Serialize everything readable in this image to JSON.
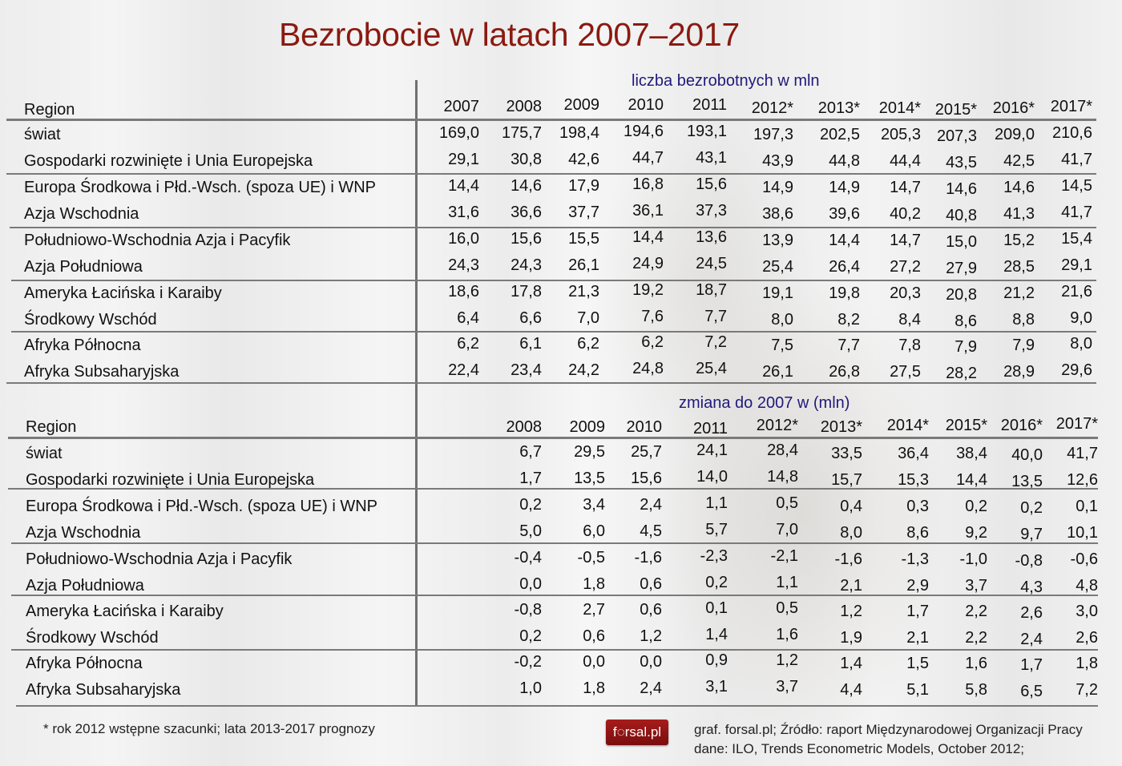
{
  "title": "Bezrobocie w latach 2007–2017",
  "table1": {
    "subtitle": "liczba bezrobotnych w mln",
    "header_region": "Region",
    "years": [
      "2007",
      "2008",
      "2009",
      "2010",
      "2011",
      "2012*",
      "2013*",
      "2014*",
      "2015*",
      "2016*",
      "2017*"
    ],
    "rows": [
      {
        "region": "świat",
        "values": [
          "169,0",
          "175,7",
          "198,4",
          "194,6",
          "193,1",
          "197,3",
          "202,5",
          "205,3",
          "207,3",
          "209,0",
          "210,6"
        ]
      },
      {
        "region": "Gospodarki rozwinięte i Unia Europejska",
        "values": [
          "29,1",
          "30,8",
          "42,6",
          "44,7",
          "43,1",
          "43,9",
          "44,8",
          "44,4",
          "43,5",
          "42,5",
          "41,7"
        ]
      },
      {
        "region": "Europa Środkowa i Płd.-Wsch. (spoza UE) i WNP",
        "values": [
          "14,4",
          "14,6",
          "17,9",
          "16,8",
          "15,6",
          "14,9",
          "14,9",
          "14,7",
          "14,6",
          "14,6",
          "14,5"
        ]
      },
      {
        "region": "Azja Wschodnia",
        "values": [
          "31,6",
          "36,6",
          "37,7",
          "36,1",
          "37,3",
          "38,6",
          "39,6",
          "40,2",
          "40,8",
          "41,3",
          "41,7"
        ]
      },
      {
        "region": "Południowo-Wschodnia Azja i Pacyfik",
        "values": [
          "16,0",
          "15,6",
          "15,5",
          "14,4",
          "13,6",
          "13,9",
          "14,4",
          "14,7",
          "15,0",
          "15,2",
          "15,4"
        ]
      },
      {
        "region": "Azja Południowa",
        "values": [
          "24,3",
          "24,3",
          "26,1",
          "24,9",
          "24,5",
          "25,4",
          "26,4",
          "27,2",
          "27,9",
          "28,5",
          "29,1"
        ]
      },
      {
        "region": "Ameryka Łacińska i Karaiby",
        "values": [
          "18,6",
          "17,8",
          "21,3",
          "19,2",
          "18,7",
          "19,1",
          "19,8",
          "20,3",
          "20,8",
          "21,2",
          "21,6"
        ]
      },
      {
        "region": "Środkowy Wschód",
        "values": [
          "6,4",
          "6,6",
          "7,0",
          "7,6",
          "7,7",
          "8,0",
          "8,2",
          "8,4",
          "8,6",
          "8,8",
          "9,0"
        ]
      },
      {
        "region": "Afryka Północna",
        "values": [
          "6,2",
          "6,1",
          "6,2",
          "6,2",
          "7,2",
          "7,5",
          "7,7",
          "7,8",
          "7,9",
          "7,9",
          "8,0"
        ]
      },
      {
        "region": "Afryka Subsaharyjska",
        "values": [
          "22,4",
          "23,4",
          "24,2",
          "24,8",
          "25,4",
          "26,1",
          "26,8",
          "27,5",
          "28,2",
          "28,9",
          "29,6"
        ]
      }
    ]
  },
  "table2": {
    "subtitle": "zmiana do 2007 w (mln)",
    "header_region": "Region",
    "years": [
      "2008",
      "2009",
      "2010",
      "2011",
      "2012*",
      "2013*",
      "2014*",
      "2015*",
      "2016*",
      "2017*"
    ],
    "rows": [
      {
        "region": "świat",
        "values": [
          "6,7",
          "29,5",
          "25,7",
          "24,1",
          "28,4",
          "33,5",
          "36,4",
          "38,4",
          "40,0",
          "41,7"
        ]
      },
      {
        "region": "Gospodarki rozwinięte i Unia Europejska",
        "values": [
          "1,7",
          "13,5",
          "15,6",
          "14,0",
          "14,8",
          "15,7",
          "15,3",
          "14,4",
          "13,5",
          "12,6"
        ]
      },
      {
        "region": "Europa Środkowa i Płd.-Wsch. (spoza UE) i WNP",
        "values": [
          "0,2",
          "3,4",
          "2,4",
          "1,1",
          "0,5",
          "0,4",
          "0,3",
          "0,2",
          "0,2",
          "0,1"
        ]
      },
      {
        "region": "Azja Wschodnia",
        "values": [
          "5,0",
          "6,0",
          "4,5",
          "5,7",
          "7,0",
          "8,0",
          "8,6",
          "9,2",
          "9,7",
          "10,1"
        ]
      },
      {
        "region": "Południowo-Wschodnia Azja i Pacyfik",
        "values": [
          "-0,4",
          "-0,5",
          "-1,6",
          "-2,3",
          "-2,1",
          "-1,6",
          "-1,3",
          "-1,0",
          "-0,8",
          "-0,6"
        ]
      },
      {
        "region": "Azja Południowa",
        "values": [
          "0,0",
          "1,8",
          "0,6",
          "0,2",
          "1,1",
          "2,1",
          "2,9",
          "3,7",
          "4,3",
          "4,8"
        ]
      },
      {
        "region": "Ameryka Łacińska i Karaiby",
        "values": [
          "-0,8",
          "2,7",
          "0,6",
          "0,1",
          "0,5",
          "1,2",
          "1,7",
          "2,2",
          "2,6",
          "3,0"
        ]
      },
      {
        "region": "Środkowy Wschód",
        "values": [
          "0,2",
          "0,6",
          "1,2",
          "1,4",
          "1,6",
          "1,9",
          "2,1",
          "2,2",
          "2,4",
          "2,6"
        ]
      },
      {
        "region": "Afryka Północna",
        "values": [
          "-0,2",
          "0,0",
          "0,0",
          "0,9",
          "1,2",
          "1,4",
          "1,5",
          "1,6",
          "1,7",
          "1,8"
        ]
      },
      {
        "region": "Afryka Subsaharyjska",
        "values": [
          "1,0",
          "1,8",
          "2,4",
          "3,1",
          "3,7",
          "4,4",
          "5,1",
          "5,8",
          "6,5",
          "7,2"
        ]
      }
    ]
  },
  "footer": {
    "note": "* rok 2012 wstępne szacunki; lata 2013-2017 prognozy",
    "logo": "f◌rsal.pl",
    "source_line1": "graf. forsal.pl; Źródło: raport Międzynarodowej Organizacji Pracy",
    "source_line2": "dane: ILO, Trends Econometric Models, October 2012;"
  },
  "colors": {
    "title": "#8b1a10",
    "subtitle": "#1f1a7a",
    "logo_bg": "#8e1414"
  },
  "chart_data": [
    {
      "type": "table",
      "title": "Bezrobocie w latach 2007–2017 — liczba bezrobotnych w mln",
      "columns": [
        "Region",
        "2007",
        "2008",
        "2009",
        "2010",
        "2011",
        "2012*",
        "2013*",
        "2014*",
        "2015*",
        "2016*",
        "2017*"
      ],
      "rows": [
        [
          "świat",
          169.0,
          175.7,
          198.4,
          194.6,
          193.1,
          197.3,
          202.5,
          205.3,
          207.3,
          209.0,
          210.6
        ],
        [
          "Gospodarki rozwinięte i Unia Europejska",
          29.1,
          30.8,
          42.6,
          44.7,
          43.1,
          43.9,
          44.8,
          44.4,
          43.5,
          42.5,
          41.7
        ],
        [
          "Europa Środkowa i Płd.-Wsch. (spoza UE) i WNP",
          14.4,
          14.6,
          17.9,
          16.8,
          15.6,
          14.9,
          14.9,
          14.7,
          14.6,
          14.6,
          14.5
        ],
        [
          "Azja Wschodnia",
          31.6,
          36.6,
          37.7,
          36.1,
          37.3,
          38.6,
          39.6,
          40.2,
          40.8,
          41.3,
          41.7
        ],
        [
          "Południowo-Wschodnia Azja i Pacyfik",
          16.0,
          15.6,
          15.5,
          14.4,
          13.6,
          13.9,
          14.4,
          14.7,
          15.0,
          15.2,
          15.4
        ],
        [
          "Azja Południowa",
          24.3,
          24.3,
          26.1,
          24.9,
          24.5,
          25.4,
          26.4,
          27.2,
          27.9,
          28.5,
          29.1
        ],
        [
          "Ameryka Łacińska i Karaiby",
          18.6,
          17.8,
          21.3,
          19.2,
          18.7,
          19.1,
          19.8,
          20.3,
          20.8,
          21.2,
          21.6
        ],
        [
          "Środkowy Wschód",
          6.4,
          6.6,
          7.0,
          7.6,
          7.7,
          8.0,
          8.2,
          8.4,
          8.6,
          8.8,
          9.0
        ],
        [
          "Afryka Północna",
          6.2,
          6.1,
          6.2,
          6.2,
          7.2,
          7.5,
          7.7,
          7.8,
          7.9,
          7.9,
          8.0
        ],
        [
          "Afryka Subsaharyjska",
          22.4,
          23.4,
          24.2,
          24.8,
          25.4,
          26.1,
          26.8,
          27.5,
          28.2,
          28.9,
          29.6
        ]
      ]
    },
    {
      "type": "table",
      "title": "zmiana do 2007 w (mln)",
      "columns": [
        "Region",
        "2008",
        "2009",
        "2010",
        "2011",
        "2012*",
        "2013*",
        "2014*",
        "2015*",
        "2016*",
        "2017*"
      ],
      "rows": [
        [
          "świat",
          6.7,
          29.5,
          25.7,
          24.1,
          28.4,
          33.5,
          36.4,
          38.4,
          40.0,
          41.7
        ],
        [
          "Gospodarki rozwinięte i Unia Europejska",
          1.7,
          13.5,
          15.6,
          14.0,
          14.8,
          15.7,
          15.3,
          14.4,
          13.5,
          12.6
        ],
        [
          "Europa Środkowa i Płd.-Wsch. (spoza UE) i WNP",
          0.2,
          3.4,
          2.4,
          1.1,
          0.5,
          0.4,
          0.3,
          0.2,
          0.2,
          0.1
        ],
        [
          "Azja Wschodnia",
          5.0,
          6.0,
          4.5,
          5.7,
          7.0,
          8.0,
          8.6,
          9.2,
          9.7,
          10.1
        ],
        [
          "Południowo-Wschodnia Azja i Pacyfik",
          -0.4,
          -0.5,
          -1.6,
          -2.3,
          -2.1,
          -1.6,
          -1.3,
          -1.0,
          -0.8,
          -0.6
        ],
        [
          "Azja Południowa",
          0.0,
          1.8,
          0.6,
          0.2,
          1.1,
          2.1,
          2.9,
          3.7,
          4.3,
          4.8
        ],
        [
          "Ameryka Łacińska i Karaiby",
          -0.8,
          2.7,
          0.6,
          0.1,
          0.5,
          1.2,
          1.7,
          2.2,
          2.6,
          3.0
        ],
        [
          "Środkowy Wschód",
          0.2,
          0.6,
          1.2,
          1.4,
          1.6,
          1.9,
          2.1,
          2.2,
          2.4,
          2.6
        ],
        [
          "Afryka Północna",
          -0.2,
          0.0,
          0.0,
          0.9,
          1.2,
          1.4,
          1.5,
          1.6,
          1.7,
          1.8
        ],
        [
          "Afryka Subsaharyjska",
          1.0,
          1.8,
          2.4,
          3.1,
          3.7,
          4.4,
          5.1,
          5.8,
          6.5,
          7.2
        ]
      ]
    }
  ]
}
